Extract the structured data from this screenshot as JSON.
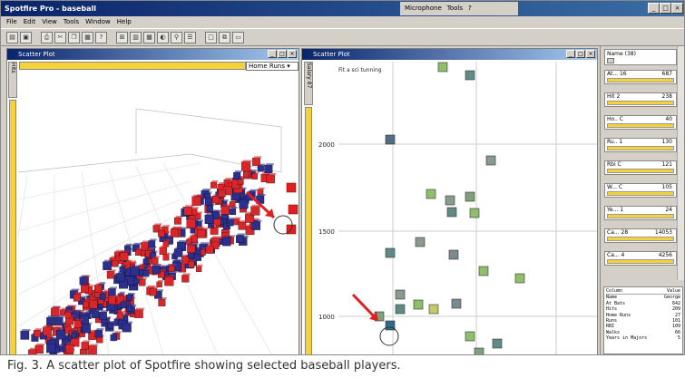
{
  "app": {
    "title": "Spotfire Pro - baseball",
    "microphone": "Microphone",
    "tools": "Tools"
  },
  "menu": [
    "File",
    "Edit",
    "View",
    "Tools",
    "Window",
    "Help"
  ],
  "toolbar_icons": [
    "open-icon",
    "save-icon",
    "print-icon",
    "cut-icon",
    "copy-icon",
    "paste-icon",
    "help-icon",
    "chart-icon",
    "bar-icon",
    "table-icon",
    "pie-icon",
    "filter-icon",
    "list-icon",
    "window-icon",
    "tile-icon",
    "cascade-icon"
  ],
  "left_plot": {
    "title": "Scatter Plot",
    "axis_selector": "Home Runs",
    "y_axis_tab": "Hits"
  },
  "right_plot": {
    "title": "Scatter Plot",
    "y_axis_tab": "Salary 87",
    "hint": "Fit a sci tunning",
    "ticks": [
      "2000",
      "1500",
      "1000"
    ]
  },
  "props": {
    "header": "Name",
    "header_count": "(38)",
    "rows": [
      {
        "label": "At... 16",
        "value": "687"
      },
      {
        "label": "Hit 2",
        "value": "238"
      },
      {
        "label": "Ho.. C",
        "value": "40"
      },
      {
        "label": "Ru.. 1",
        "value": "130"
      },
      {
        "label": "Rbi C",
        "value": "121"
      },
      {
        "label": "W... C",
        "value": "105"
      },
      {
        "label": "Ye... 1",
        "value": "24"
      },
      {
        "label": "Ca... 28",
        "value": "14053"
      },
      {
        "label": "Ca... 4",
        "value": "4256"
      }
    ],
    "detail_header": [
      "Column",
      "Value"
    ],
    "detail_rows": [
      [
        "Name",
        "George"
      ],
      [
        "At Bats",
        "642"
      ],
      [
        "Hits",
        "209"
      ],
      [
        "Home Runs",
        "27"
      ],
      [
        "Runs",
        "101"
      ],
      [
        "RBI",
        "109"
      ],
      [
        "Walks",
        "66"
      ],
      [
        "Years in Majors",
        "5"
      ]
    ]
  },
  "caption": "Fig. 3. A scatter plot of Spotfire showing selected baseball players."
}
